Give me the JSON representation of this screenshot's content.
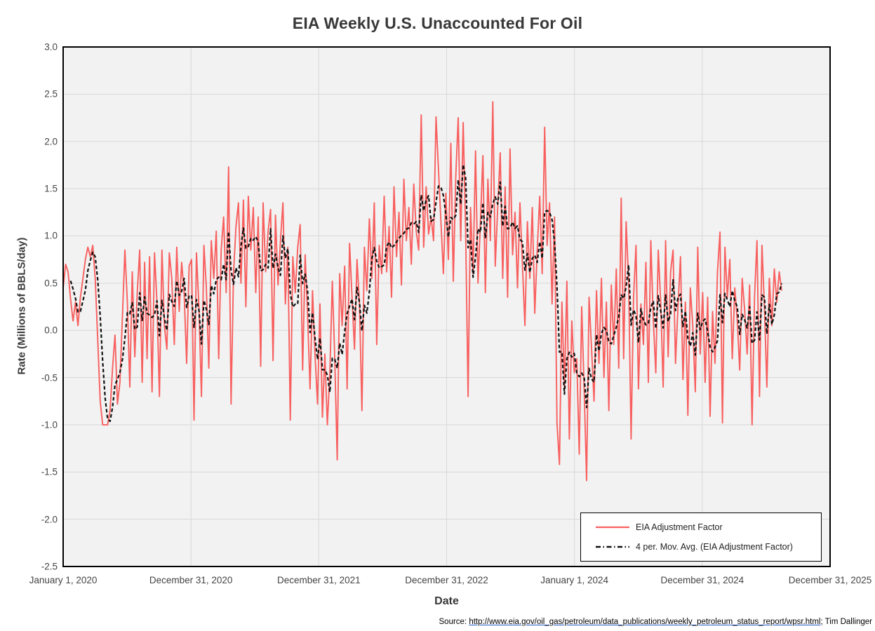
{
  "title": "EIA Weekly U.S. Unaccounted For Oil",
  "source": {
    "prefix": "Source: ",
    "url": "http://www.eia.gov/oil_gas/petroleum/data_publications/weekly_petroleum_status_report/wpsr.html",
    "suffix": "; Tim Dallinger"
  },
  "chart_data": {
    "type": "line",
    "title": "EIA Weekly U.S. Unaccounted For Oil",
    "xlabel": "Date",
    "ylabel": "Rate (Millions of BBLS/day)",
    "ylim": [
      -2.5,
      3.0
    ],
    "ytick_step": 0.5,
    "ytick_labels": [
      "3.0",
      "2.5",
      "2.0",
      "1.5",
      "1.0",
      "0.5",
      "0.0",
      "-0.5",
      "-1.0",
      "-1.5",
      "-2.0",
      "-2.5"
    ],
    "xtick_labels": [
      "January 1, 2020",
      "December 31, 2020",
      "December 31, 2021",
      "December 31, 2022",
      "January 1, 2024",
      "December 31, 2024",
      "December 31, 2025"
    ],
    "grid": true,
    "plot_bg_color": "#f2f2f2",
    "grid_color": "#d8d8d8",
    "border_color": "#000000",
    "legend_position": "inside-bottom-right",
    "x_start": "2020-01-03",
    "x_interval": "weekly",
    "series": [
      {
        "name": "EIA Adjustment Factor",
        "color": "#f85f5f",
        "style": "solid",
        "values_note": "weekly values estimated from pixels, Jan 2020 - mid 2025",
        "values": [
          0.45,
          0.7,
          0.62,
          0.33,
          0.1,
          0.3,
          0.05,
          0.35,
          0.55,
          0.75,
          0.88,
          0.78,
          0.9,
          0.55,
          -0.1,
          -0.75,
          -1.0,
          -1.0,
          -1.0,
          -0.85,
          -0.4,
          -0.05,
          -0.78,
          -0.55,
          0.15,
          0.85,
          0.3,
          -0.6,
          0.62,
          -0.28,
          0.4,
          0.85,
          -0.55,
          0.72,
          -0.3,
          0.78,
          -0.65,
          0.82,
          0.3,
          -0.7,
          0.85,
          0.05,
          -0.2,
          0.82,
          0.55,
          -0.15,
          0.88,
          0.2,
          0.72,
          0.4,
          -0.35,
          0.68,
          0.75,
          -0.95,
          0.82,
          0.25,
          -0.7,
          0.9,
          0.45,
          -0.4,
          0.95,
          0.55,
          1.05,
          -0.3,
          0.85,
          1.2,
          0.4,
          1.73,
          -0.78,
          0.6,
          1.1,
          1.35,
          0.5,
          1.38,
          0.25,
          1.42,
          0.85,
          1.3,
          0.4,
          1.2,
          -0.38,
          1.35,
          0.62,
          1.05,
          1.28,
          -0.32,
          1.22,
          0.48,
          0.95,
          1.35,
          0.28,
          0.88,
          -0.95,
          0.78,
          0.4,
          0.88,
          1.12,
          -0.42,
          0.8,
          0.15,
          -0.62,
          0.42,
          -0.25,
          -0.78,
          0.28,
          -0.92,
          -0.25,
          -1.0,
          -0.45,
          0.52,
          -0.3,
          -1.37,
          0.6,
          0.05,
          0.68,
          -0.62,
          0.92,
          0.35,
          -0.2,
          0.75,
          0.28,
          -0.85,
          0.88,
          0.42,
          1.18,
          0.55,
          1.35,
          -0.15,
          0.9,
          0.6,
          1.42,
          0.62,
          1.1,
          0.35,
          1.52,
          0.78,
          1.25,
          0.48,
          1.6,
          0.95,
          1.3,
          0.7,
          1.55,
          1.05,
          0.85,
          2.28,
          0.88,
          1.52,
          1.02,
          1.2,
          0.95,
          2.26,
          1.7,
          1.15,
          0.6,
          1.45,
          0.75,
          1.98,
          0.52,
          1.62,
          2.25,
          0.95,
          2.2,
          1.05,
          -0.7,
          1.3,
          0.6,
          1.9,
          0.5,
          1.15,
          1.85,
          0.4,
          1.6,
          0.95,
          2.42,
          0.68,
          1.3,
          1.88,
          0.55,
          1.52,
          0.35,
          1.92,
          0.8,
          1.25,
          0.45,
          1.35,
          0.7,
          0.05,
          1.15,
          0.55,
          1.3,
          0.18,
          0.85,
          1.42,
          0.6,
          2.15,
          0.9,
          1.35,
          0.28,
          1.2,
          -0.98,
          -1.42,
          0.3,
          -0.6,
          0.52,
          -1.15,
          0.1,
          -0.45,
          -0.3,
          -1.31,
          0.25,
          -0.62,
          -1.59,
          0.35,
          -0.2,
          -0.75,
          0.42,
          -0.35,
          0.55,
          -0.5,
          0.3,
          -0.85,
          0.48,
          -0.15,
          0.65,
          -0.4,
          1.4,
          -0.3,
          1.15,
          0.52,
          -1.15,
          0.35,
          0.9,
          -0.62,
          0.28,
          -0.15,
          0.72,
          -0.55,
          0.95,
          0.12,
          -0.45,
          0.85,
          0.3,
          -0.6,
          0.95,
          -0.28,
          0.62,
          0.85,
          -0.35,
          0.25,
          0.78,
          -0.52,
          0.3,
          -0.9,
          0.45,
          0.05,
          -0.65,
          0.88,
          -0.25,
          0.4,
          -0.55,
          0.35,
          -0.91,
          0.2,
          -0.35,
          0.62,
          1.04,
          -0.98,
          0.88,
          0.35,
          0.75,
          -0.3,
          0.45,
          0.1,
          -0.42,
          0.55,
          0.22,
          -0.25,
          0.48,
          -1.0,
          0.35,
          0.95,
          -0.7,
          0.9,
          0.25,
          -0.6,
          0.55,
          0.05,
          0.65,
          0.3,
          0.62,
          0.42
        ]
      },
      {
        "name": "4 per. Mov. Avg. (EIA Adjustment Factor)",
        "color": "#000000",
        "style": "dashed",
        "derived": "trailing 4-period moving average of EIA Adjustment Factor"
      }
    ]
  },
  "legend": {
    "item1": "EIA Adjustment Factor",
    "item2": "4 per. Mov. Avg. (EIA Adjustment Factor)"
  }
}
